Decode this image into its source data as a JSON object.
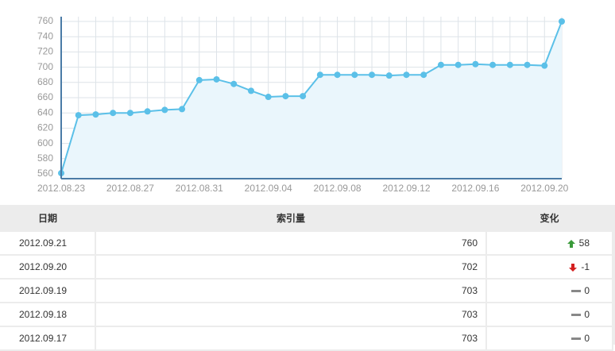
{
  "chart_data": {
    "type": "line",
    "categories": [
      "2012.08.23",
      null,
      null,
      null,
      "2012.08.27",
      null,
      null,
      null,
      "2012.08.31",
      null,
      null,
      null,
      "2012.09.04",
      null,
      null,
      null,
      "2012.09.08",
      null,
      null,
      null,
      "2012.09.12",
      null,
      null,
      null,
      "2012.09.16",
      null,
      null,
      null,
      "2012.09.20",
      null
    ],
    "values": [
      561,
      637,
      638,
      640,
      640,
      642,
      644,
      645,
      683,
      684,
      678,
      669,
      661,
      662,
      662,
      690,
      690,
      690,
      690,
      689,
      690,
      690,
      703,
      703,
      704,
      703,
      703,
      703,
      702,
      760
    ],
    "color": "#5bc0e8",
    "area_color": "#eaf6fc",
    "ylim": [
      560,
      760
    ],
    "yticks": [
      560,
      580,
      600,
      620,
      640,
      660,
      680,
      700,
      720,
      740,
      760
    ],
    "grid": true
  },
  "table": {
    "header": [
      "日期",
      "索引量",
      "变化"
    ],
    "rows": [
      [
        "2012.09.21",
        760,
        58
      ],
      [
        "2012.09.20",
        702,
        -1
      ],
      [
        "2012.09.19",
        703,
        0
      ],
      [
        "2012.09.18",
        703,
        0
      ],
      [
        "2012.09.17",
        703,
        0
      ]
    ]
  }
}
